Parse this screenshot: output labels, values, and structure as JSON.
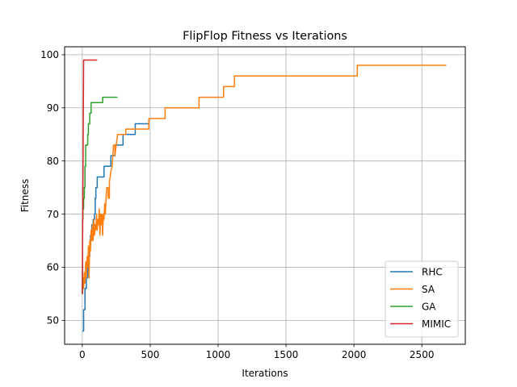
{
  "chart_data": {
    "type": "line",
    "title": "FlipFlop Fitness vs Iterations",
    "xlabel": "Iterations",
    "ylabel": "Fitness",
    "xlim": [
      -130,
      2820
    ],
    "ylim": [
      45.5,
      101.5
    ],
    "xticks": [
      0,
      500,
      1000,
      1500,
      2000,
      2500
    ],
    "yticks": [
      50,
      60,
      70,
      80,
      90,
      100
    ],
    "grid": true,
    "legend_position": "lower-right",
    "series": [
      {
        "name": "RHC",
        "color": "#1f77b4",
        "points": [
          [
            0,
            48
          ],
          [
            10,
            48
          ],
          [
            10,
            52
          ],
          [
            20,
            52
          ],
          [
            20,
            56
          ],
          [
            30,
            56
          ],
          [
            30,
            58
          ],
          [
            40,
            58
          ],
          [
            40,
            60
          ],
          [
            50,
            60
          ],
          [
            50,
            62
          ],
          [
            55,
            62
          ],
          [
            55,
            64
          ],
          [
            60,
            64
          ],
          [
            60,
            66
          ],
          [
            70,
            66
          ],
          [
            70,
            68
          ],
          [
            80,
            68
          ],
          [
            80,
            69
          ],
          [
            90,
            69
          ],
          [
            90,
            70
          ],
          [
            95,
            70
          ],
          [
            95,
            73
          ],
          [
            100,
            73
          ],
          [
            100,
            75
          ],
          [
            110,
            75
          ],
          [
            110,
            77
          ],
          [
            160,
            77
          ],
          [
            160,
            79
          ],
          [
            210,
            79
          ],
          [
            210,
            81
          ],
          [
            240,
            81
          ],
          [
            240,
            83
          ],
          [
            300,
            83
          ],
          [
            300,
            85
          ],
          [
            390,
            85
          ],
          [
            390,
            87
          ],
          [
            490,
            87
          ],
          [
            490,
            88
          ]
        ]
      },
      {
        "name": "SA",
        "color": "#ff7f0e",
        "points": [
          [
            0,
            55
          ],
          [
            5,
            58
          ],
          [
            10,
            56
          ],
          [
            15,
            59
          ],
          [
            20,
            57
          ],
          [
            25,
            61
          ],
          [
            30,
            58
          ],
          [
            35,
            62
          ],
          [
            40,
            60
          ],
          [
            45,
            64
          ],
          [
            50,
            58
          ],
          [
            55,
            65
          ],
          [
            60,
            63
          ],
          [
            65,
            67
          ],
          [
            70,
            65
          ],
          [
            75,
            68
          ],
          [
            80,
            65
          ],
          [
            85,
            69
          ],
          [
            90,
            66
          ],
          [
            95,
            68
          ],
          [
            100,
            67
          ],
          [
            105,
            70
          ],
          [
            110,
            67
          ],
          [
            115,
            69
          ],
          [
            120,
            68
          ],
          [
            125,
            71
          ],
          [
            130,
            66
          ],
          [
            135,
            70
          ],
          [
            140,
            68
          ],
          [
            145,
            70
          ],
          [
            150,
            66
          ],
          [
            155,
            70
          ],
          [
            160,
            69
          ],
          [
            165,
            72
          ],
          [
            170,
            70
          ],
          [
            175,
            73
          ],
          [
            180,
            75
          ],
          [
            190,
            75
          ],
          [
            190,
            73
          ],
          [
            200,
            73
          ],
          [
            200,
            76
          ],
          [
            210,
            78
          ],
          [
            220,
            79
          ],
          [
            225,
            81
          ],
          [
            230,
            83
          ],
          [
            240,
            83
          ],
          [
            240,
            81
          ],
          [
            250,
            83
          ],
          [
            260,
            85
          ],
          [
            320,
            85
          ],
          [
            320,
            86
          ],
          [
            490,
            86
          ],
          [
            490,
            88
          ],
          [
            610,
            88
          ],
          [
            610,
            90
          ],
          [
            860,
            90
          ],
          [
            860,
            92
          ],
          [
            1040,
            92
          ],
          [
            1040,
            94
          ],
          [
            1120,
            94
          ],
          [
            1120,
            96
          ],
          [
            2025,
            96
          ],
          [
            2025,
            98
          ],
          [
            2680,
            98
          ]
        ]
      },
      {
        "name": "GA",
        "color": "#2ca02c",
        "points": [
          [
            0,
            55
          ],
          [
            2,
            55
          ],
          [
            2,
            69
          ],
          [
            5,
            69
          ],
          [
            5,
            71
          ],
          [
            10,
            71
          ],
          [
            10,
            73
          ],
          [
            15,
            73
          ],
          [
            15,
            75
          ],
          [
            20,
            75
          ],
          [
            20,
            79
          ],
          [
            25,
            79
          ],
          [
            25,
            83
          ],
          [
            40,
            83
          ],
          [
            40,
            85
          ],
          [
            45,
            85
          ],
          [
            45,
            87
          ],
          [
            55,
            87
          ],
          [
            55,
            89
          ],
          [
            65,
            89
          ],
          [
            65,
            91
          ],
          [
            150,
            91
          ],
          [
            150,
            92
          ],
          [
            260,
            92
          ]
        ]
      },
      {
        "name": "MIMIC",
        "color": "#d62728",
        "points": [
          [
            0,
            55
          ],
          [
            10,
            99
          ],
          [
            110,
            99
          ]
        ]
      }
    ]
  }
}
